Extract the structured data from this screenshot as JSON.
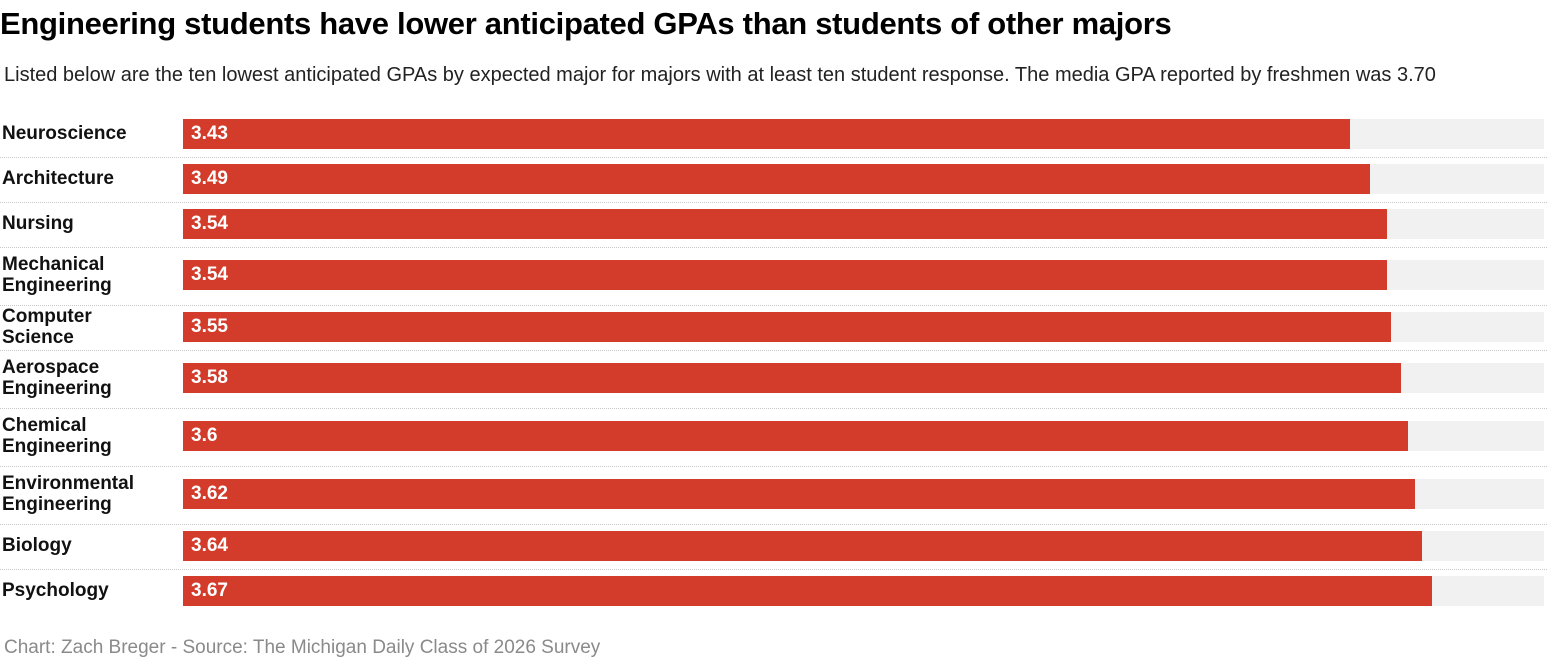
{
  "title": "Engineering students have lower anticipated GPAs than students of other majors",
  "subtitle": "Listed below are the ten lowest anticipated GPAs by expected major for majors with at least ten student response. The media GPA reported by freshmen was 3.70",
  "footer": "Chart: Zach Breger - Source: The Michigan Daily Class of 2026 Survey",
  "colors": {
    "bar": "#d33b2a",
    "track": "#f1f1f2"
  },
  "chart_data": {
    "type": "bar",
    "orientation": "horizontal",
    "title": "Engineering students have lower anticipated GPAs than students of other majors",
    "xlabel": "",
    "ylabel": "",
    "xlim": [
      0,
      4.0
    ],
    "categories": [
      "Neuroscience",
      "Architecture",
      "Nursing",
      "Mechanical Engineering",
      "Computer Science",
      "Aerospace Engineering",
      "Chemical Engineering",
      "Environmental Engineering",
      "Biology",
      "Psychology"
    ],
    "values": [
      3.43,
      3.49,
      3.54,
      3.54,
      3.55,
      3.58,
      3.6,
      3.62,
      3.64,
      3.67
    ],
    "value_labels": [
      "3.43",
      "3.49",
      "3.54",
      "3.54",
      "3.55",
      "3.58",
      "3.6",
      "3.62",
      "3.64",
      "3.67"
    ],
    "label_lines": [
      [
        "Neuroscience"
      ],
      [
        "Architecture"
      ],
      [
        "Nursing"
      ],
      [
        "Mechanical",
        "Engineering"
      ],
      [
        "Computer Science"
      ],
      [
        "Aerospace",
        "Engineering"
      ],
      [
        "Chemical",
        "Engineering"
      ],
      [
        "Environmental",
        "Engineering"
      ],
      [
        "Biology"
      ],
      [
        "Psychology"
      ]
    ]
  }
}
